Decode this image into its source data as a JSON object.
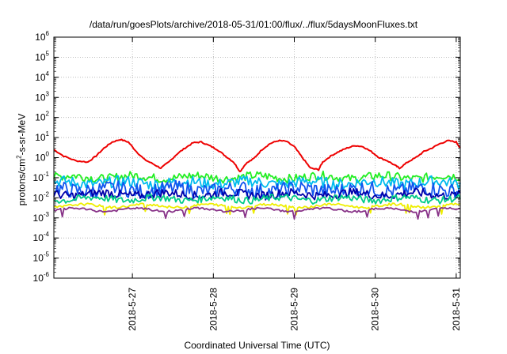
{
  "chart_data": {
    "type": "line",
    "title": "/data/run/goesPlots/archive/2018-05-31/01:00/flux/../flux/5daysMoonFluxes.txt",
    "xlabel": "Coordinated Universal Time (UTC)",
    "ylabel": {
      "pre": "protons/cm",
      "sup": "2",
      "post": "-s-sr-MeV"
    },
    "yscale": "log",
    "ylim_exponents": [
      -6,
      6
    ],
    "ytick_labels": [
      {
        "base": "10",
        "exp": "-6"
      },
      {
        "base": "10",
        "exp": "-5"
      },
      {
        "base": "10",
        "exp": "-4"
      },
      {
        "base": "10",
        "exp": "-3"
      },
      {
        "base": "10",
        "exp": "-2"
      },
      {
        "base": "10",
        "exp": "-1"
      },
      {
        "base": "10",
        "exp": "0"
      },
      {
        "base": "10",
        "exp": "1"
      },
      {
        "base": "10",
        "exp": "2"
      },
      {
        "base": "10",
        "exp": "3"
      },
      {
        "base": "10",
        "exp": "4"
      },
      {
        "base": "10",
        "exp": "5"
      },
      {
        "base": "10",
        "exp": "6"
      }
    ],
    "xlim_days": [
      26.03,
      31.05
    ],
    "xticks": [
      {
        "label": "2018-5-27",
        "day": 27
      },
      {
        "label": "2018-5-28",
        "day": 28
      },
      {
        "label": "2018-5-29",
        "day": 29
      },
      {
        "label": "2018-5-30",
        "day": 30
      },
      {
        "label": "2018-5-31",
        "day": 31
      }
    ],
    "grid": true,
    "series": [
      {
        "color": "#ee0000",
        "kind": "smooth",
        "points": [
          [
            26.03,
            2.5
          ],
          [
            26.15,
            1.2
          ],
          [
            26.3,
            0.7
          ],
          [
            26.45,
            0.6
          ],
          [
            26.55,
            1.2
          ],
          [
            26.65,
            3
          ],
          [
            26.75,
            6
          ],
          [
            26.85,
            8
          ],
          [
            26.95,
            6
          ],
          [
            27.05,
            2
          ],
          [
            27.15,
            0.8
          ],
          [
            27.25,
            0.5
          ],
          [
            27.35,
            0.3
          ],
          [
            27.45,
            0.6
          ],
          [
            27.55,
            1.5
          ],
          [
            27.65,
            3
          ],
          [
            27.75,
            5.5
          ],
          [
            27.85,
            6
          ],
          [
            27.95,
            4
          ],
          [
            28.05,
            2.5
          ],
          [
            28.15,
            1.2
          ],
          [
            28.25,
            0.6
          ],
          [
            28.33,
            0.2
          ],
          [
            28.4,
            0.5
          ],
          [
            28.5,
            0.9
          ],
          [
            28.6,
            2.5
          ],
          [
            28.7,
            5
          ],
          [
            28.8,
            7
          ],
          [
            28.9,
            6.5
          ],
          [
            29.0,
            3.5
          ],
          [
            29.1,
            1
          ],
          [
            29.2,
            0.3
          ],
          [
            29.3,
            0.25
          ],
          [
            29.35,
            0.6
          ],
          [
            29.45,
            1.2
          ],
          [
            29.55,
            2
          ],
          [
            29.65,
            3
          ],
          [
            29.75,
            4
          ],
          [
            29.85,
            3.5
          ],
          [
            29.95,
            2
          ],
          [
            30.05,
            1
          ],
          [
            30.15,
            0.7
          ],
          [
            30.25,
            0.4
          ],
          [
            30.3,
            0.3
          ],
          [
            30.4,
            0.6
          ],
          [
            30.5,
            1
          ],
          [
            30.6,
            2
          ],
          [
            30.7,
            3
          ],
          [
            30.8,
            5
          ],
          [
            30.9,
            7
          ],
          [
            31.0,
            6
          ],
          [
            31.05,
            3
          ]
        ]
      },
      {
        "color": "#22ee22",
        "kind": "band",
        "center": -0.97,
        "amp": 0.22
      },
      {
        "color": "#00bbee",
        "kind": "band",
        "center": -1.25,
        "amp": 0.28
      },
      {
        "color": "#1155ee",
        "kind": "band",
        "center": -1.6,
        "amp": 0.38
      },
      {
        "color": "#0000aa",
        "kind": "band",
        "center": -1.82,
        "amp": 0.22
      },
      {
        "color": "#00cc88",
        "kind": "band",
        "center": -2.05,
        "amp": 0.18
      },
      {
        "color": "#eeee00",
        "kind": "band",
        "center": -2.4,
        "amp": 0.06
      },
      {
        "color": "#883388",
        "kind": "band",
        "center": -2.6,
        "amp": 0.05
      }
    ]
  }
}
